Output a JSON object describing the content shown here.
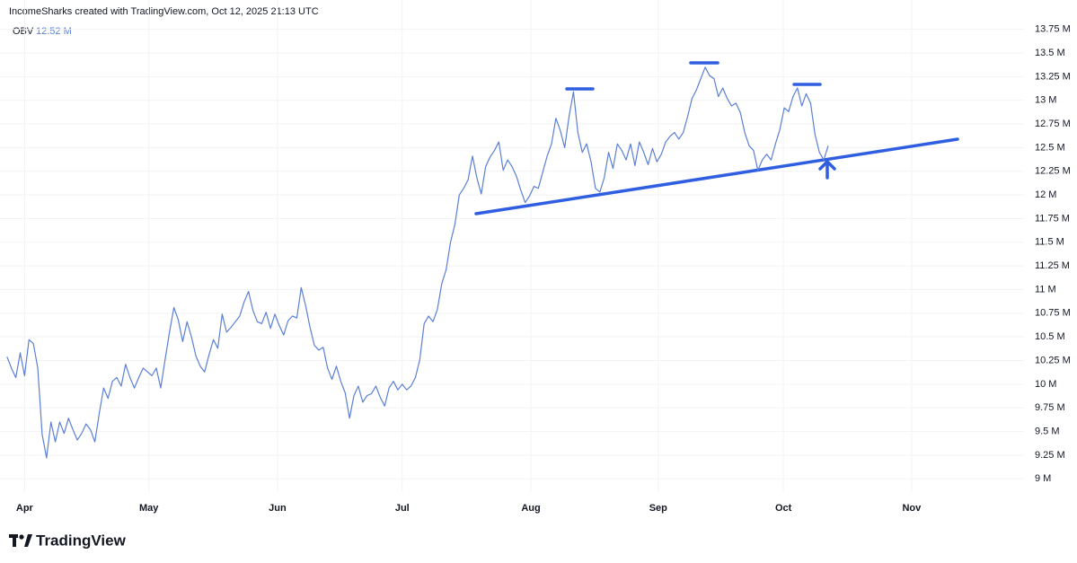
{
  "chart_data": {
    "type": "line",
    "title": "IncomeSharks created with TradingView.com, Oct 12, 2025 21:13 UTC",
    "brand": "TradingView",
    "series": [
      {
        "name": "OBV",
        "color": "#5b7fd6",
        "last_label": "12.52 M",
        "values": [
          10.29,
          10.17,
          10.07,
          10.33,
          10.09,
          10.47,
          10.43,
          10.17,
          9.47,
          9.22,
          9.6,
          9.39,
          9.6,
          9.48,
          9.64,
          9.52,
          9.41,
          9.48,
          9.58,
          9.52,
          9.39,
          9.69,
          9.96,
          9.85,
          10.03,
          10.07,
          9.98,
          10.21,
          10.07,
          9.96,
          10.07,
          10.17,
          10.13,
          10.09,
          10.17,
          9.96,
          10.26,
          10.55,
          10.81,
          10.68,
          10.45,
          10.66,
          10.5,
          10.3,
          10.19,
          10.13,
          10.31,
          10.47,
          10.38,
          10.74,
          10.55,
          10.6,
          10.66,
          10.72,
          10.87,
          10.98,
          10.78,
          10.66,
          10.64,
          10.76,
          10.59,
          10.74,
          10.62,
          10.52,
          10.67,
          10.72,
          10.7,
          11.02,
          10.83,
          10.6,
          10.41,
          10.36,
          10.39,
          10.17,
          10.05,
          10.19,
          10.03,
          9.91,
          9.64,
          9.88,
          9.98,
          9.81,
          9.88,
          9.9,
          9.98,
          9.86,
          9.77,
          9.96,
          10.03,
          9.94,
          10.0,
          9.94,
          9.98,
          10.07,
          10.26,
          10.64,
          10.72,
          10.66,
          10.79,
          11.06,
          11.21,
          11.5,
          11.69,
          12.0,
          12.07,
          12.16,
          12.41,
          12.18,
          12.01,
          12.3,
          12.4,
          12.47,
          12.56,
          12.26,
          12.37,
          12.3,
          12.2,
          12.05,
          11.92,
          11.99,
          12.09,
          12.07,
          12.24,
          12.41,
          12.54,
          12.81,
          12.68,
          12.5,
          12.83,
          13.09,
          12.66,
          12.45,
          12.54,
          12.35,
          12.07,
          12.03,
          12.18,
          12.45,
          12.28,
          12.54,
          12.47,
          12.37,
          12.54,
          12.31,
          12.56,
          12.45,
          12.32,
          12.49,
          12.35,
          12.43,
          12.56,
          12.62,
          12.66,
          12.59,
          12.66,
          12.83,
          13.02,
          13.11,
          13.23,
          13.35,
          13.26,
          13.23,
          13.04,
          13.13,
          13.02,
          12.94,
          12.97,
          12.87,
          12.66,
          12.52,
          12.47,
          12.26,
          12.37,
          12.43,
          12.37,
          12.54,
          12.69,
          12.92,
          12.88,
          13.04,
          13.13,
          12.94,
          13.07,
          12.97,
          12.64,
          12.45,
          12.37,
          12.52
        ]
      }
    ],
    "xlim": [
      -1.6,
      231.6
    ],
    "xticks": [
      {
        "value": 4,
        "label": "Apr"
      },
      {
        "value": 32.3,
        "label": "May"
      },
      {
        "value": 61.6,
        "label": "Jun"
      },
      {
        "value": 90,
        "label": "Jul"
      },
      {
        "value": 119.3,
        "label": "Aug"
      },
      {
        "value": 148.3,
        "label": "Sep"
      },
      {
        "value": 176.8,
        "label": "Oct"
      },
      {
        "value": 206,
        "label": "Nov"
      }
    ],
    "ylim": [
      8.86,
      14.06
    ],
    "yticks": [
      {
        "value": 9,
        "label": "9 M"
      },
      {
        "value": 9.25,
        "label": "9.25 M"
      },
      {
        "value": 9.5,
        "label": "9.5 M"
      },
      {
        "value": 9.75,
        "label": "9.75 M"
      },
      {
        "value": 10,
        "label": "10 M"
      },
      {
        "value": 10.25,
        "label": "10.25 M"
      },
      {
        "value": 10.5,
        "label": "10.5 M"
      },
      {
        "value": 10.75,
        "label": "10.75 M"
      },
      {
        "value": 11,
        "label": "11 M"
      },
      {
        "value": 11.25,
        "label": "11.25 M"
      },
      {
        "value": 11.5,
        "label": "11.5 M"
      },
      {
        "value": 11.75,
        "label": "11.75 M"
      },
      {
        "value": 12,
        "label": "12 M"
      },
      {
        "value": 12.25,
        "label": "12.25 M"
      },
      {
        "value": 12.5,
        "label": "12.5 M"
      },
      {
        "value": 12.75,
        "label": "12.75 M"
      },
      {
        "value": 13,
        "label": "13 M"
      },
      {
        "value": 13.25,
        "label": "13.25 M"
      },
      {
        "value": 13.5,
        "label": "13.5 M"
      },
      {
        "value": 13.75,
        "label": "13.75 M"
      }
    ],
    "grid": true
  }
}
